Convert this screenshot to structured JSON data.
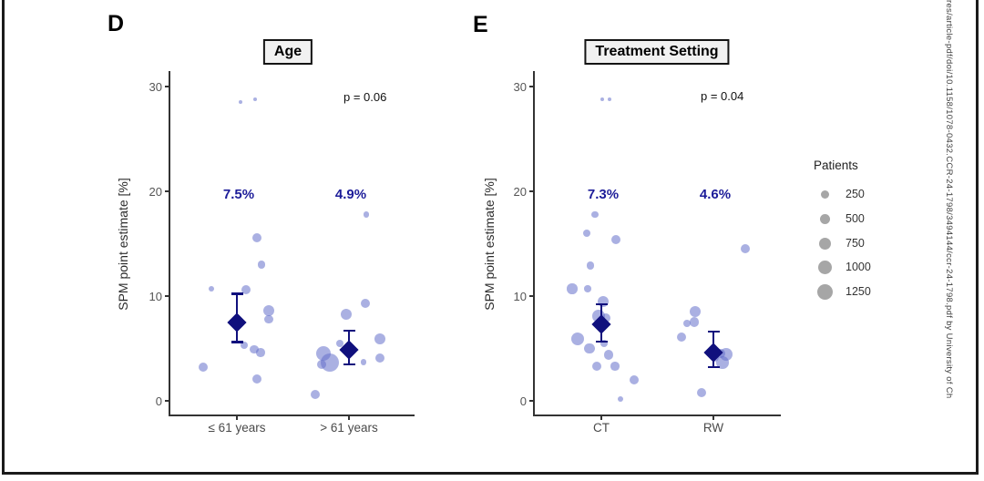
{
  "watermark": "res/article-pdf/doi/10.1158/1078-0432.CCR-24-1798/3494144/ccr-24-1798.pdf by University of Ch",
  "legend": {
    "title": "Patients",
    "sizes": [
      250,
      500,
      750,
      1000,
      1250
    ]
  },
  "colors": {
    "bubble_fill": "rgba(100,111,202,0.55)",
    "navy": "#10107d",
    "pct_text": "#1c1c99",
    "axis": "#333333",
    "tick_text": "#555555",
    "legend_gray": "#a6a6a6"
  },
  "point_format": "[spm_percent, jitter_dx_px, radius_px, est_patients]",
  "chart_data": [
    {
      "type": "bubble-strip",
      "panel_label": "D",
      "title": "Age",
      "p_value_label": "p = 0.06",
      "ylabel": "SPM point estimate [%]",
      "xlabel": "",
      "yticks": [
        0,
        10,
        20,
        30
      ],
      "ylim": [
        -1.5,
        31.5
      ],
      "grid": false,
      "categories": [
        "≤ 61 years",
        "> 61 years"
      ],
      "groups": [
        {
          "category": "≤ 61 years",
          "estimate_label": "7.5%",
          "mean": 7.5,
          "ci": [
            5.6,
            10.2
          ],
          "points": [
            [
              28.5,
              4,
              2,
              50
            ],
            [
              28.8,
              20,
              2.3,
              50
            ],
            [
              15.6,
              22,
              5,
              400
            ],
            [
              13.0,
              27,
              4.3,
              200
            ],
            [
              10.7,
              -28,
              3.3,
              100
            ],
            [
              10.6,
              10,
              5.3,
              450
            ],
            [
              8.6,
              35,
              6,
              600
            ],
            [
              7.8,
              35,
              4.7,
              300
            ],
            [
              5.3,
              8,
              4,
              150
            ],
            [
              4.9,
              19,
              4.7,
              300
            ],
            [
              4.6,
              26,
              4.7,
              300
            ],
            [
              3.2,
              -37,
              5,
              400
            ],
            [
              2.1,
              22,
              5,
              400
            ]
          ]
        },
        {
          "category": "> 61 years",
          "estimate_label": "4.9%",
          "mean": 4.9,
          "ci": [
            3.5,
            6.7
          ],
          "points": [
            [
              17.8,
              19,
              3.3,
              100
            ],
            [
              9.3,
              18,
              5.3,
              450
            ],
            [
              8.3,
              -3,
              6,
              600
            ],
            [
              5.9,
              34,
              6,
              600
            ],
            [
              5.5,
              -10,
              4,
              150
            ],
            [
              4.5,
              -28,
              8,
              1100
            ],
            [
              3.65,
              -21,
              10,
              1600
            ],
            [
              3.5,
              -30,
              5,
              400
            ],
            [
              3.7,
              16,
              3.3,
              100
            ],
            [
              4.1,
              34,
              5.3,
              450
            ],
            [
              0.6,
              -37,
              5.3,
              450
            ]
          ]
        }
      ]
    },
    {
      "type": "bubble-strip",
      "panel_label": "E",
      "title": "Treatment Setting",
      "p_value_label": "p = 0.04",
      "ylabel": "SPM point estimate [%]",
      "xlabel": "",
      "yticks": [
        0,
        10,
        20,
        30
      ],
      "ylim": [
        -1.5,
        31.5
      ],
      "grid": false,
      "categories": [
        "CT",
        "RW"
      ],
      "groups": [
        {
          "category": "CT",
          "estimate_label": "7.3%",
          "mean": 7.3,
          "ci": [
            5.65,
            9.2
          ],
          "points": [
            [
              28.8,
              1,
              2,
              50
            ],
            [
              28.8,
              9,
              2.3,
              50
            ],
            [
              17.8,
              -7,
              3.7,
              100
            ],
            [
              16.0,
              -16,
              4.3,
              200
            ],
            [
              15.4,
              16,
              5.3,
              450
            ],
            [
              12.9,
              -12,
              4.3,
              200
            ],
            [
              10.7,
              -32,
              5.7,
              550
            ],
            [
              10.7,
              -15,
              3.7,
              100
            ],
            [
              9.5,
              2,
              6,
              600
            ],
            [
              8.1,
              -3,
              6.7,
              800
            ],
            [
              7.9,
              5,
              5,
              400
            ],
            [
              5.9,
              -26,
              7,
              900
            ],
            [
              5.5,
              3,
              4,
              150
            ],
            [
              5.0,
              -13,
              5.7,
              550
            ],
            [
              4.4,
              8,
              5.3,
              450
            ],
            [
              3.3,
              -5,
              5.3,
              450
            ],
            [
              3.3,
              15,
              4.7,
              300
            ],
            [
              2.0,
              36,
              5.3,
              450
            ],
            [
              0.2,
              21,
              3,
              100
            ]
          ]
        },
        {
          "category": "RW",
          "estimate_label": "4.6%",
          "mean": 4.6,
          "ci": [
            3.2,
            6.6
          ],
          "points": [
            [
              14.5,
              35,
              5,
              400
            ],
            [
              8.5,
              -20,
              6,
              600
            ],
            [
              7.5,
              -21,
              5.3,
              450
            ],
            [
              7.4,
              -29,
              4.3,
              200
            ],
            [
              6.1,
              -35,
              5.3,
              450
            ],
            [
              4.5,
              8,
              5,
              400
            ],
            [
              4.4,
              14,
              7,
              900
            ],
            [
              3.65,
              10,
              6.7,
              800
            ],
            [
              4.1,
              1,
              4.5,
              250
            ],
            [
              0.8,
              -13,
              5.3,
              450
            ]
          ]
        }
      ]
    }
  ]
}
